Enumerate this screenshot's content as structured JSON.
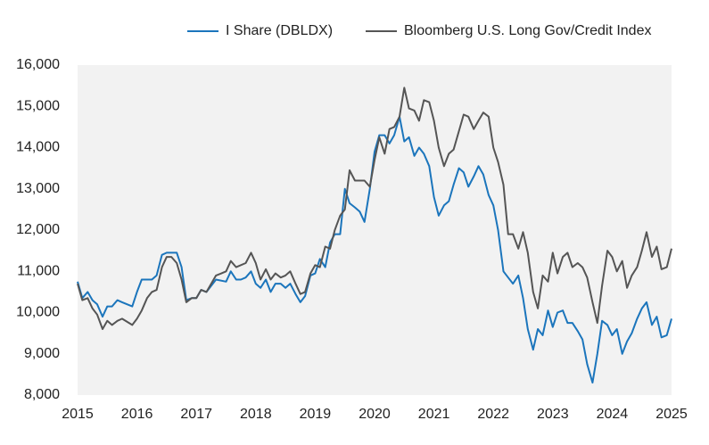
{
  "chart_data": {
    "type": "line",
    "xlim": [
      2015,
      2025
    ],
    "xticks": [
      2015,
      2016,
      2017,
      2018,
      2019,
      2020,
      2021,
      2022,
      2023,
      2024,
      2025
    ],
    "ylim": [
      8000,
      16000
    ],
    "yticks": [
      {
        "value": 8000,
        "label": "8,000"
      },
      {
        "value": 9000,
        "label": "9,000"
      },
      {
        "value": 10000,
        "label": "10,000"
      },
      {
        "value": 11000,
        "label": "11,000"
      },
      {
        "value": 12000,
        "label": "12,000"
      },
      {
        "value": 13000,
        "label": "13,000"
      },
      {
        "value": 14000,
        "label": "14,000"
      },
      {
        "value": 15000,
        "label": "15,000"
      },
      {
        "value": 16000,
        "label": "16,000"
      }
    ],
    "grid": false,
    "series": [
      {
        "name": "I Share (DBLDX)",
        "color": "#1b75bc",
        "x": [
          2015.0,
          2015.08,
          2015.17,
          2015.25,
          2015.33,
          2015.42,
          2015.5,
          2015.58,
          2015.67,
          2015.75,
          2015.92,
          2016.0,
          2016.08,
          2016.25,
          2016.33,
          2016.42,
          2016.5,
          2016.67,
          2016.75,
          2016.83,
          2016.92,
          2017.0,
          2017.08,
          2017.17,
          2017.33,
          2017.5,
          2017.58,
          2017.67,
          2017.75,
          2017.83,
          2017.92,
          2018.0,
          2018.08,
          2018.17,
          2018.25,
          2018.33,
          2018.42,
          2018.5,
          2018.58,
          2018.67,
          2018.75,
          2018.83,
          2018.92,
          2019.0,
          2019.08,
          2019.17,
          2019.25,
          2019.33,
          2019.42,
          2019.5,
          2019.58,
          2019.67,
          2019.75,
          2019.83,
          2019.92,
          2020.0,
          2020.08,
          2020.17,
          2020.25,
          2020.33,
          2020.42,
          2020.5,
          2020.58,
          2020.67,
          2020.75,
          2020.83,
          2020.92,
          2021.0,
          2021.08,
          2021.17,
          2021.25,
          2021.33,
          2021.42,
          2021.5,
          2021.58,
          2021.67,
          2021.75,
          2021.83,
          2021.92,
          2022.0,
          2022.08,
          2022.17,
          2022.25,
          2022.33,
          2022.42,
          2022.5,
          2022.58,
          2022.67,
          2022.75,
          2022.83,
          2022.92,
          2023.0,
          2023.08,
          2023.17,
          2023.25,
          2023.33,
          2023.42,
          2023.5,
          2023.58,
          2023.67,
          2023.75,
          2023.83,
          2023.92,
          2024.0,
          2024.08,
          2024.17,
          2024.25,
          2024.33,
          2024.42,
          2024.5,
          2024.58,
          2024.67,
          2024.75,
          2024.83,
          2024.92,
          2025.0
        ],
        "values": [
          10750,
          10350,
          10500,
          10300,
          10200,
          9900,
          10150,
          10150,
          10300,
          10250,
          10150,
          10500,
          10800,
          10800,
          10900,
          11400,
          11450,
          11450,
          11100,
          10300,
          10350,
          10350,
          10550,
          10500,
          10800,
          10750,
          11000,
          10800,
          10800,
          10850,
          11000,
          10700,
          10600,
          10800,
          10500,
          10700,
          10700,
          10600,
          10700,
          10450,
          10250,
          10400,
          10900,
          10950,
          11300,
          11100,
          11700,
          11900,
          11900,
          13000,
          12650,
          12550,
          12450,
          12200,
          13000,
          13900,
          14300,
          14300,
          14100,
          14300,
          14750,
          14150,
          14250,
          13800,
          14000,
          13850,
          13550,
          12800,
          12350,
          12600,
          12700,
          13100,
          13500,
          13400,
          13050,
          13300,
          13550,
          13350,
          12850,
          12600,
          12000,
          11000,
          10850,
          10700,
          10900,
          10350,
          9600,
          9100,
          9600,
          9450,
          10050,
          9650,
          10000,
          10050,
          9750,
          9750,
          9550,
          9350,
          8750,
          8300,
          9000,
          9800,
          9700,
          9450,
          9600,
          9000,
          9300,
          9500,
          9850,
          10100,
          10250,
          9700,
          9900,
          9400,
          9450,
          9850
        ]
      },
      {
        "name": "Bloomberg U.S. Long Gov/Credit Index",
        "color": "#555555",
        "x": [
          2015.0,
          2015.08,
          2015.17,
          2015.25,
          2015.33,
          2015.42,
          2015.5,
          2015.58,
          2015.67,
          2015.75,
          2015.92,
          2016.0,
          2016.08,
          2016.17,
          2016.25,
          2016.33,
          2016.42,
          2016.5,
          2016.58,
          2016.67,
          2016.75,
          2016.83,
          2016.92,
          2017.0,
          2017.08,
          2017.17,
          2017.33,
          2017.42,
          2017.5,
          2017.58,
          2017.67,
          2017.83,
          2017.92,
          2018.0,
          2018.08,
          2018.17,
          2018.25,
          2018.33,
          2018.42,
          2018.5,
          2018.58,
          2018.67,
          2018.75,
          2018.83,
          2018.92,
          2019.0,
          2019.08,
          2019.17,
          2019.25,
          2019.33,
          2019.42,
          2019.5,
          2019.58,
          2019.67,
          2019.75,
          2019.83,
          2019.92,
          2020.0,
          2020.08,
          2020.17,
          2020.25,
          2020.33,
          2020.42,
          2020.5,
          2020.58,
          2020.67,
          2020.75,
          2020.83,
          2020.92,
          2021.0,
          2021.08,
          2021.17,
          2021.25,
          2021.33,
          2021.42,
          2021.5,
          2021.58,
          2021.67,
          2021.75,
          2021.83,
          2021.92,
          2022.0,
          2022.08,
          2022.17,
          2022.25,
          2022.33,
          2022.42,
          2022.5,
          2022.58,
          2022.67,
          2022.75,
          2022.83,
          2022.92,
          2023.0,
          2023.08,
          2023.17,
          2023.25,
          2023.33,
          2023.42,
          2023.5,
          2023.58,
          2023.67,
          2023.75,
          2023.83,
          2023.92,
          2024.0,
          2024.08,
          2024.17,
          2024.25,
          2024.33,
          2024.42,
          2024.5,
          2024.58,
          2024.67,
          2024.75,
          2024.83,
          2024.92,
          2025.0
        ],
        "values": [
          10700,
          10300,
          10350,
          10100,
          9950,
          9600,
          9800,
          9700,
          9800,
          9850,
          9700,
          9850,
          10050,
          10350,
          10500,
          10550,
          11100,
          11350,
          11350,
          11200,
          10800,
          10250,
          10350,
          10350,
          10550,
          10500,
          10900,
          10950,
          11000,
          11250,
          11100,
          11200,
          11450,
          11200,
          10800,
          11050,
          10800,
          10950,
          10850,
          10900,
          11000,
          10700,
          10450,
          10500,
          10950,
          11150,
          11100,
          11600,
          11550,
          12000,
          12350,
          12500,
          13450,
          13200,
          13200,
          13200,
          13050,
          13700,
          14250,
          13850,
          14450,
          14500,
          14750,
          15450,
          14950,
          14900,
          14650,
          15150,
          15100,
          14650,
          14000,
          13550,
          13850,
          13950,
          14400,
          14800,
          14750,
          14450,
          14650,
          14850,
          14750,
          14000,
          13650,
          13100,
          11900,
          11900,
          11550,
          11950,
          11450,
          10500,
          10100,
          10900,
          10750,
          11450,
          10950,
          11350,
          11450,
          11100,
          11200,
          11100,
          10850,
          10250,
          9750,
          10650,
          11500,
          11350,
          11000,
          11250,
          10600,
          10900,
          11100,
          11500,
          11950,
          11350,
          11600,
          11050,
          11100,
          11550
        ]
      }
    ]
  }
}
